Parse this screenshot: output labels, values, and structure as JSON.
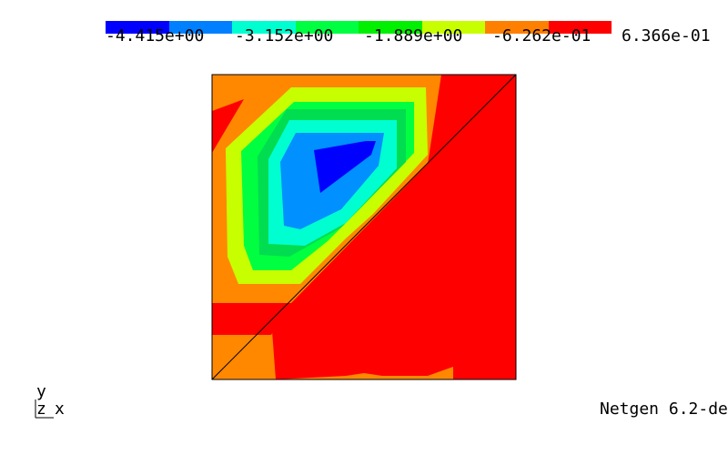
{
  "colorbar": {
    "colors": [
      "#0000ff",
      "#0080ff",
      "#00ffd0",
      "#00ff40",
      "#00f000",
      "#c8ff00",
      "#ff8000",
      "#ff0000"
    ],
    "ticks": [
      "-4.415e+00",
      "-3.152e+00",
      "-1.889e+00",
      "-6.262e-01",
      "6.366e-01"
    ]
  },
  "field_colors": {
    "orange": "#ff8800",
    "red": "#ff0000",
    "yellow_green": "#c8ff00",
    "green": "#00ff40",
    "bright_green": "#00dd50",
    "cyan": "#00ffd0",
    "sky_blue": "#0090ff",
    "blue": "#0000ff"
  },
  "axes": {
    "y": "y",
    "z": "z",
    "x": "x"
  },
  "version_text": "Netgen 6.2-de"
}
